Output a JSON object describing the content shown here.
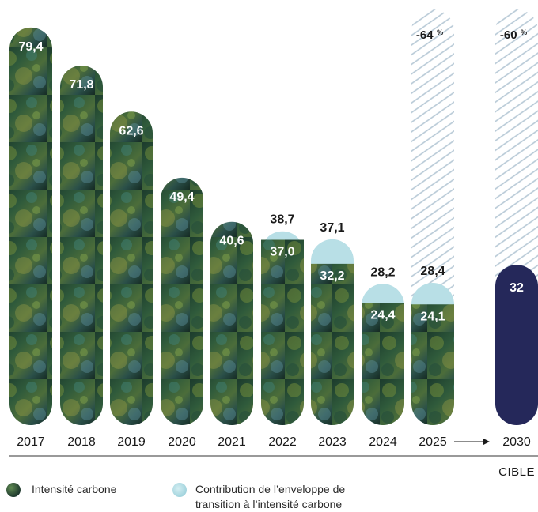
{
  "chart_data": {
    "type": "bar",
    "categories": [
      "2017",
      "2018",
      "2019",
      "2020",
      "2021",
      "2022",
      "2023",
      "2024",
      "2025",
      "2030"
    ],
    "series": [
      {
        "name": "Intensité carbone",
        "values": [
          79.4,
          71.8,
          62.6,
          49.4,
          40.6,
          37.0,
          32.2,
          24.4,
          24.1,
          32
        ]
      },
      {
        "name": "Contribution de l’enveloppe de transition à l’intensité carbone",
        "values": [
          0,
          0,
          0,
          0,
          0,
          1.7,
          4.9,
          3.8,
          4.3,
          0
        ]
      }
    ],
    "total_labels": [
      "79,4",
      "71,8",
      "62,6",
      "49,4",
      "40,6",
      "38,7",
      "37,1",
      "28,2",
      "28,4",
      "32"
    ],
    "inner_labels": [
      "",
      "",
      "",
      "",
      "",
      "37,0",
      "32,2",
      "24,4",
      "24,1",
      ""
    ],
    "reduction_labels": [
      {
        "category": "2025",
        "value": "-64",
        "unit": "%"
      },
      {
        "category": "2030",
        "value": "-60",
        "unit": "%"
      }
    ],
    "target_category": "2030",
    "target_label": "CIBLE",
    "ylim": [
      0,
      83
    ],
    "colors": {
      "carbon_intensity": "#1f3a2e",
      "transition_envelope": "#b8dfe6",
      "target": "#25285a",
      "hatch": "#b7c9d6",
      "axis": "#333333"
    },
    "legend_position": "bottom"
  },
  "legend": {
    "item1": "Intensité carbone",
    "item2_line1": "Contribution de l’enveloppe de",
    "item2_line2": "transition à l’intensité carbone"
  }
}
